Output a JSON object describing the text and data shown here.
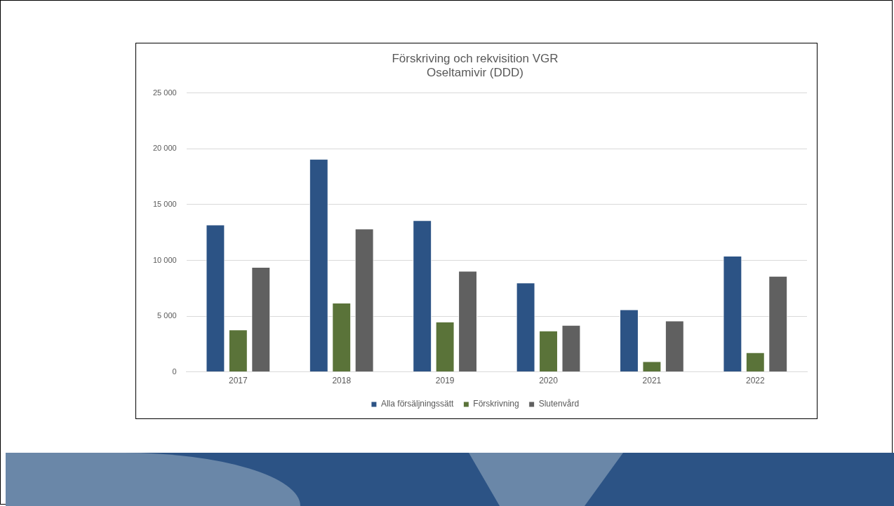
{
  "chart_data": {
    "type": "bar",
    "title": "Förskriving och rekvisition VGR",
    "subtitle": "Oseltamivir (DDD)",
    "categories": [
      "2017",
      "2018",
      "2019",
      "2020",
      "2021",
      "2022"
    ],
    "series": [
      {
        "name": "Alla försäljningssätt",
        "color": "#2c5385",
        "values": [
          13200,
          19100,
          13600,
          8000,
          5600,
          10400
        ]
      },
      {
        "name": "Förskrivning",
        "color": "#5a7339",
        "values": [
          3800,
          6200,
          4500,
          3700,
          950,
          1750
        ]
      },
      {
        "name": "Slutenvård",
        "color": "#606060",
        "values": [
          9400,
          12850,
          9050,
          4200,
          4600,
          8600
        ]
      }
    ],
    "ylim": [
      0,
      25000
    ],
    "yticks": [
      0,
      {
        "value": 5000,
        "label": "5 000"
      },
      {
        "value": 10000,
        "label": "10 000"
      },
      {
        "value": 15000,
        "label": "15 000"
      },
      {
        "value": 20000,
        "label": "20 000"
      },
      {
        "value": 25000,
        "label": "25 000"
      }
    ],
    "grid": "y",
    "legend": "bottom"
  }
}
